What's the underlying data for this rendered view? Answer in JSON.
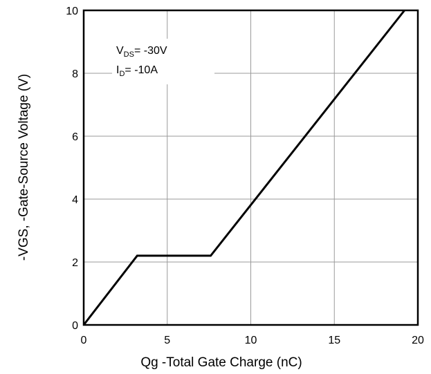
{
  "chart_data": {
    "type": "line",
    "title": "",
    "xlabel": "Qg -Total Gate Charge (nC)",
    "ylabel": "-VGS, -Gate-Source Voltage (V)",
    "xlim": [
      0,
      20
    ],
    "ylim": [
      0,
      10
    ],
    "x_ticks": [
      0,
      5,
      10,
      15,
      20
    ],
    "y_ticks": [
      0,
      2,
      4,
      6,
      8,
      10
    ],
    "grid": true,
    "series": [
      {
        "x": [
          0,
          3.2,
          7.6,
          19.2
        ],
        "y": [
          0,
          2.2,
          2.2,
          10
        ]
      }
    ],
    "annotations": {
      "vds": {
        "main": "V",
        "sub": "DS",
        "rest": "= -30V"
      },
      "id": {
        "main": "I",
        "sub": "D",
        "rest": "= -10A"
      }
    }
  }
}
